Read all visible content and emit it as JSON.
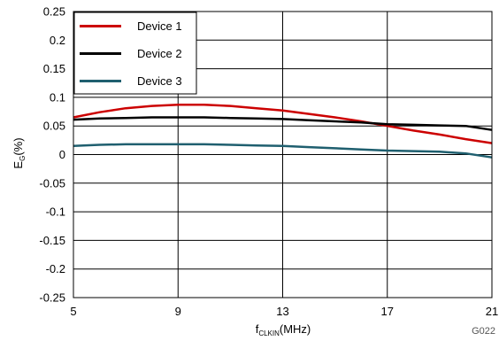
{
  "chart_data": {
    "type": "line",
    "title": "",
    "xlabel": {
      "main": "f",
      "sub": "CLKIN",
      "suffix": "(MHz)"
    },
    "ylabel": {
      "main": "E",
      "sub": "G",
      "suffix": "(%)"
    },
    "xlim": [
      5,
      21
    ],
    "ylim": [
      -0.25,
      0.25
    ],
    "xticks": [
      5,
      9,
      13,
      17,
      21
    ],
    "xtick_labels": [
      "5",
      "9",
      "13",
      "17",
      "21"
    ],
    "yticks": [
      0.25,
      0.2,
      0.15,
      0.1,
      0.05,
      0,
      -0.05,
      -0.1,
      -0.15,
      -0.2,
      -0.25
    ],
    "ytick_labels": [
      "0.25",
      "0.2",
      "0.15",
      "0.1",
      "0.05",
      "0",
      "-0.05",
      "-0.1",
      "-0.15",
      "-0.2",
      "-0.25"
    ],
    "grid": true,
    "legend_position": "top-left",
    "series": [
      {
        "name": "Device 1",
        "color": "#cc0000",
        "x": [
          5,
          6,
          7,
          8,
          9,
          10,
          11,
          12,
          13,
          14,
          15,
          16,
          17,
          18,
          19,
          20,
          21
        ],
        "y": [
          0.065,
          0.074,
          0.081,
          0.085,
          0.087,
          0.087,
          0.085,
          0.081,
          0.077,
          0.071,
          0.065,
          0.058,
          0.05,
          0.042,
          0.035,
          0.027,
          0.02
        ]
      },
      {
        "name": "Device 2",
        "color": "#000000",
        "x": [
          5,
          6,
          7,
          8,
          9,
          10,
          11,
          12,
          13,
          14,
          15,
          16,
          17,
          18,
          19,
          20,
          21
        ],
        "y": [
          0.061,
          0.063,
          0.064,
          0.065,
          0.065,
          0.065,
          0.064,
          0.063,
          0.062,
          0.06,
          0.058,
          0.056,
          0.053,
          0.052,
          0.051,
          0.05,
          0.043
        ]
      },
      {
        "name": "Device 3",
        "color": "#1f5f6f",
        "x": [
          5,
          6,
          7,
          8,
          9,
          10,
          11,
          12,
          13,
          14,
          15,
          16,
          17,
          18,
          19,
          20,
          21
        ],
        "y": [
          0.015,
          0.017,
          0.018,
          0.018,
          0.018,
          0.018,
          0.017,
          0.016,
          0.015,
          0.013,
          0.011,
          0.009,
          0.007,
          0.006,
          0.005,
          0.002,
          -0.005
        ]
      }
    ],
    "annotation": "G022"
  }
}
